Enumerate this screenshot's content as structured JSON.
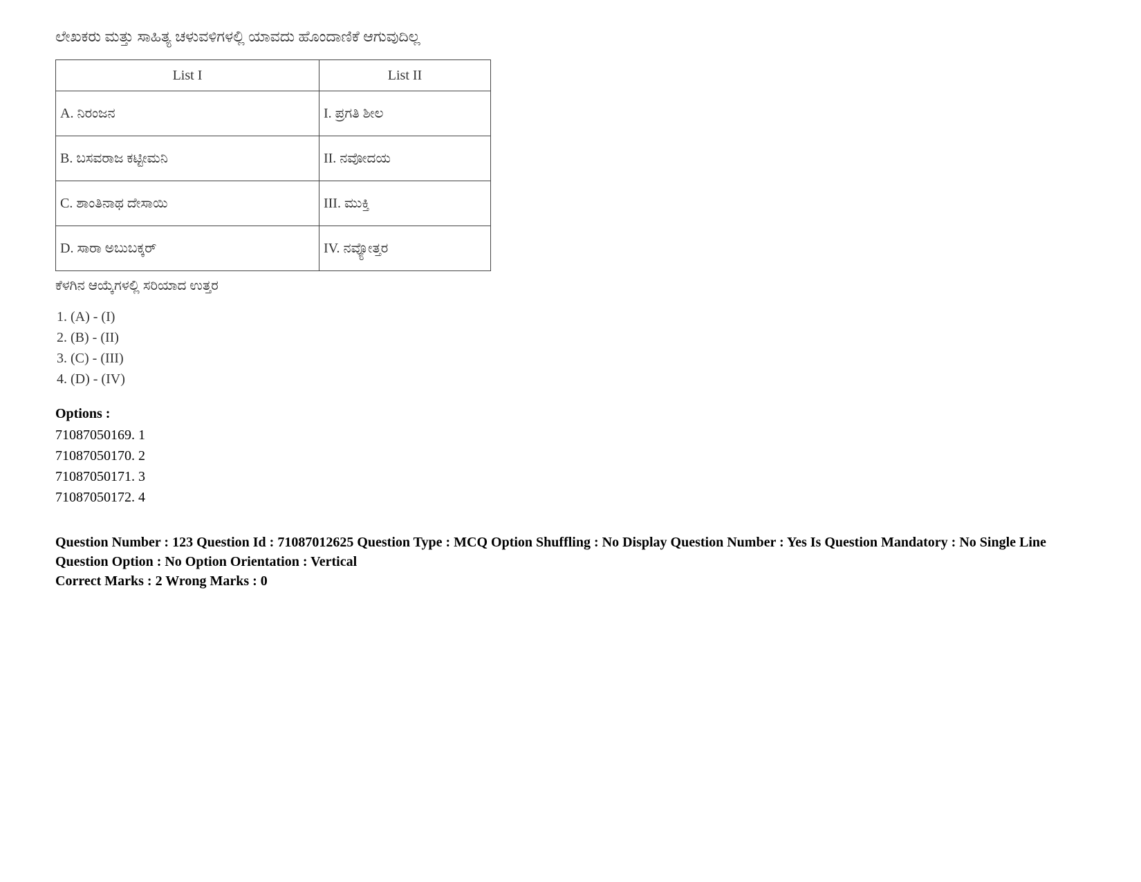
{
  "question": {
    "prompt": "ಲೇಖಕರು ಮತ್ತು ಸಾಹಿತ್ಯ ಚಳುವಳಿಗಳಲ್ಲಿ ಯಾವದು ಹೊಂದಾಣಿಕೆ ಆಗುವುದಿಲ್ಲ",
    "subtext": "ಕೆಳಗಿನ ಆಯ್ಕೆಗಳಲ್ಲಿ ಸರಿಯಾದ ಉತ್ತರ",
    "table": {
      "headers": [
        "List I",
        "List II"
      ],
      "rows": [
        [
          "A. ನಿರಂಜನ",
          "I. ಪ್ರಗತಿ ಶೀಲ"
        ],
        [
          "B. ಬಸವರಾಜ ಕಟ್ಟೀಮನಿ",
          "II. ನವೋದಯ"
        ],
        [
          "C. ಶಾಂತಿನಾಥ ದೇಸಾಯಿ",
          "III.  ಮುಕ್ತಿ"
        ],
        [
          "D. ಸಾರಾ ಅಬುಬಕ್ಕರ್",
          "IV. ನವ್ಯೋತ್ತರ"
        ]
      ]
    },
    "answers": [
      "1. (A) - (I)",
      "2. (B) - (II)",
      "3. (C) - (III)",
      "4. (D) - (IV)"
    ]
  },
  "options": {
    "label": "Options :",
    "items": [
      "71087050169. 1",
      "71087050170. 2",
      "71087050171. 3",
      "71087050172. 4"
    ]
  },
  "meta": {
    "line1": "Question Number : 123 Question Id : 71087012625 Question Type : MCQ Option Shuffling : No Display Question Number : Yes Is Question Mandatory : No Single Line Question Option : No Option Orientation : Vertical",
    "line2": "Correct Marks : 2 Wrong Marks : 0"
  }
}
